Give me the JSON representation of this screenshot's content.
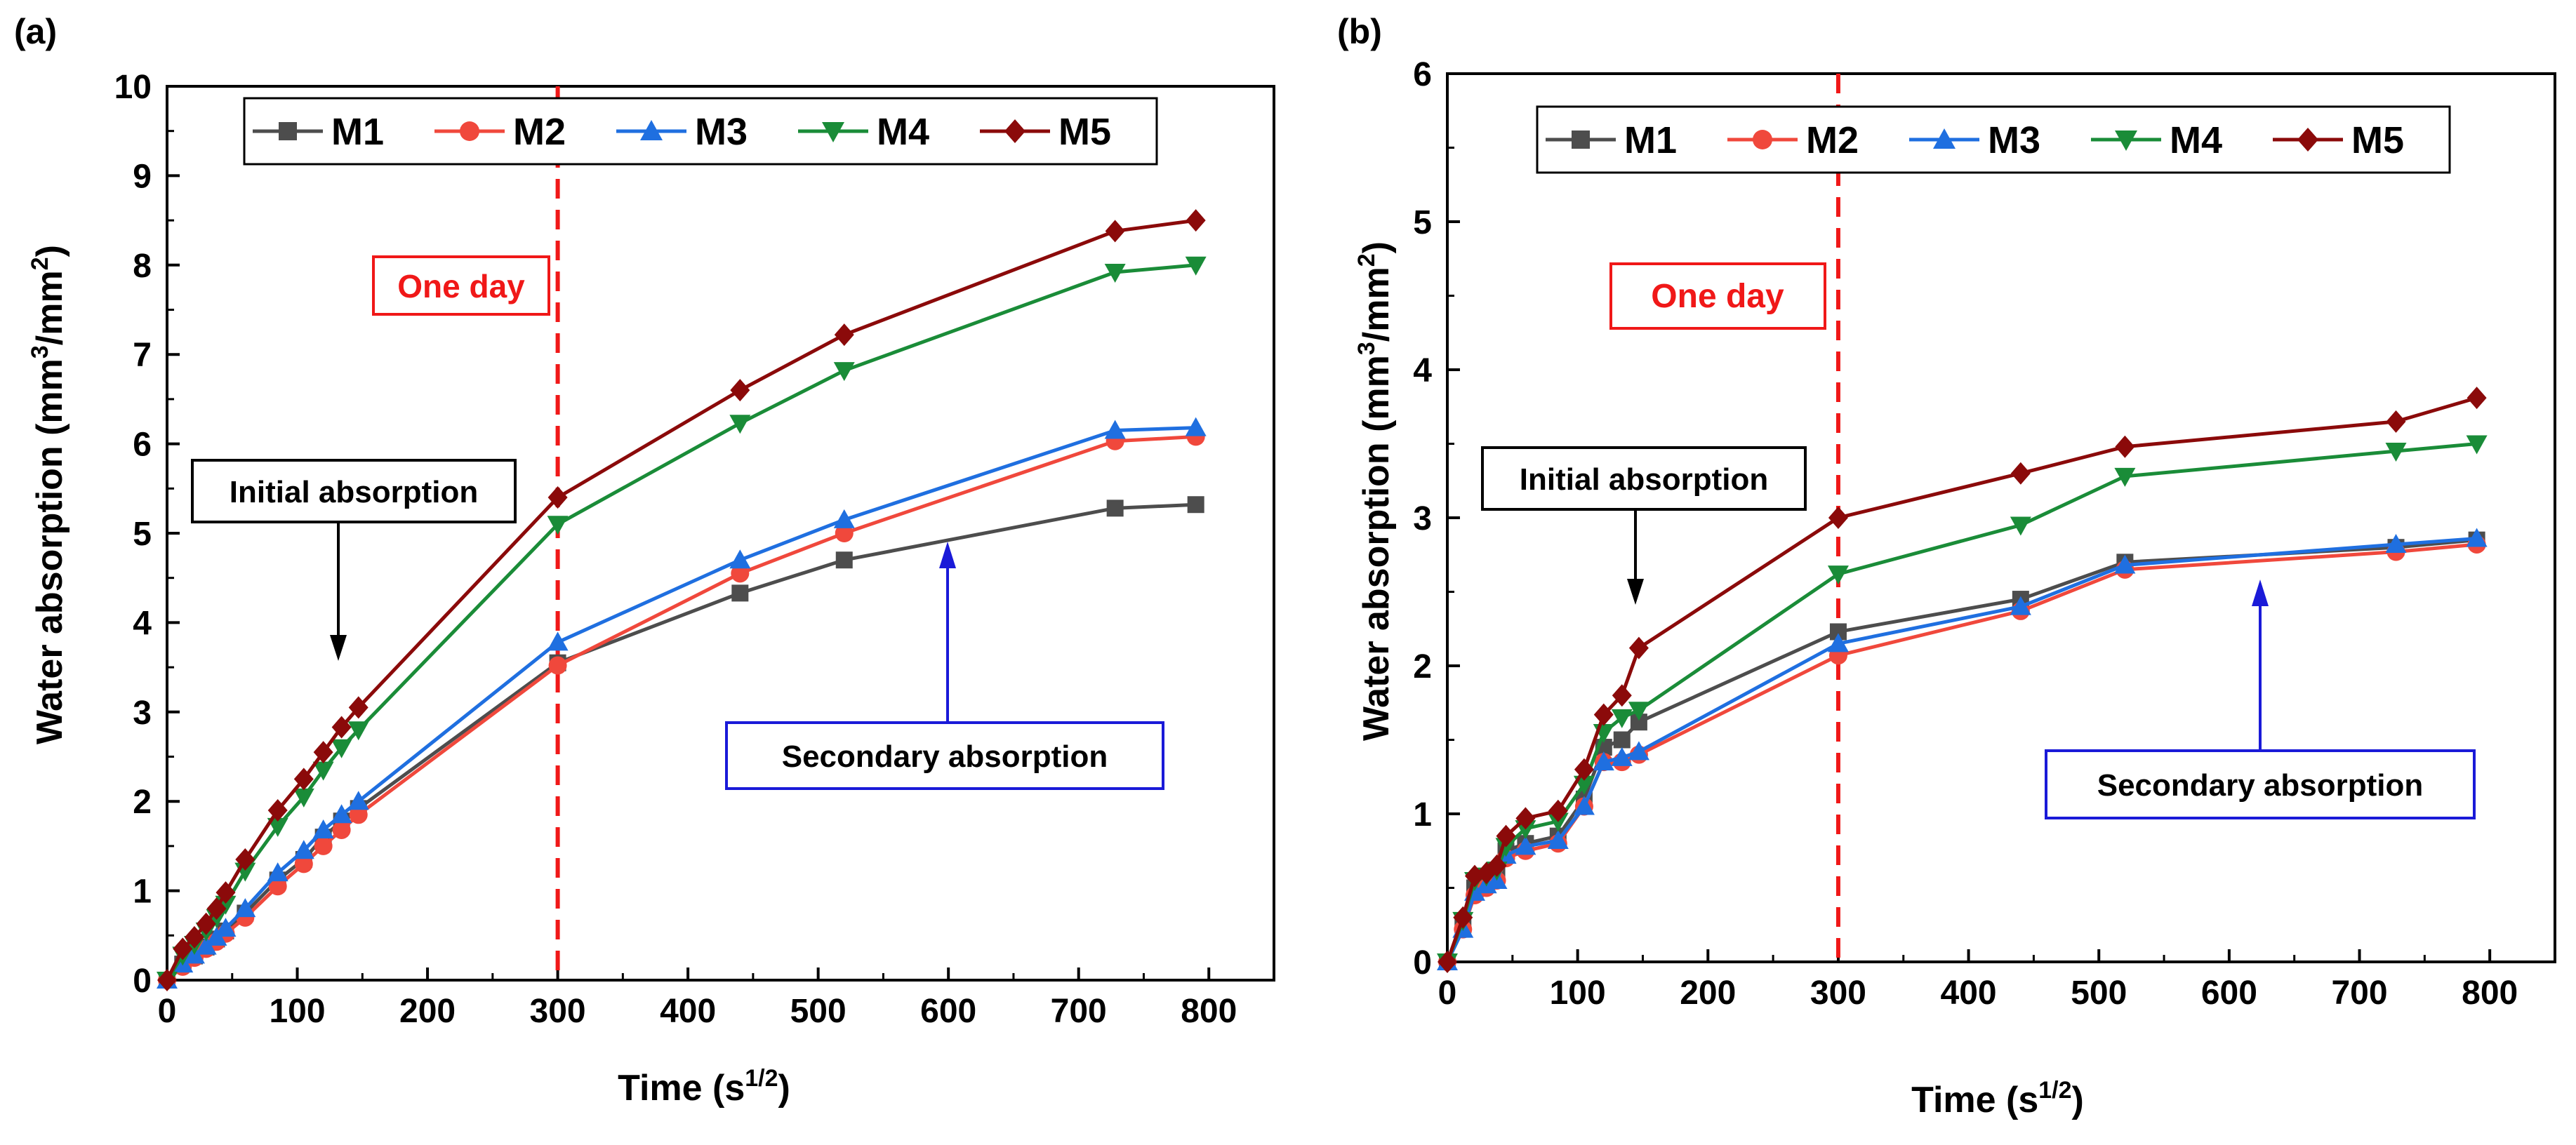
{
  "panels": [
    {
      "label": "(a)",
      "chart_data": {
        "type": "line",
        "xlabel": "Time (s",
        "xlabel_sup": "1/2",
        "xlabel_end": ")",
        "ylabel": "Water absorption (mm",
        "ylabel_sup1": "3",
        "ylabel_mid": "/mm",
        "ylabel_sup2": "2",
        "ylabel_end": ")",
        "xlim": [
          0,
          850
        ],
        "ylim": [
          0,
          10
        ],
        "xticks": [
          0,
          100,
          200,
          300,
          400,
          500,
          600,
          700,
          800
        ],
        "yticks": [
          0,
          1,
          2,
          3,
          4,
          5,
          6,
          7,
          8,
          9,
          10
        ],
        "x": [
          0,
          12,
          21,
          30,
          38,
          45,
          60,
          85,
          105,
          120,
          134,
          147,
          300,
          440,
          520,
          728,
          790
        ],
        "series": [
          {
            "name": "M1",
            "color": "#4d4d4d",
            "marker": "square",
            "values": [
              0,
              0.18,
              0.27,
              0.37,
              0.46,
              0.55,
              0.75,
              1.12,
              1.35,
              1.6,
              1.78,
              1.92,
              3.55,
              4.33,
              4.7,
              5.28,
              5.32
            ]
          },
          {
            "name": "M2",
            "color": "#f0483c",
            "marker": "circle",
            "values": [
              0,
              0.15,
              0.25,
              0.35,
              0.43,
              0.52,
              0.7,
              1.05,
              1.3,
              1.5,
              1.68,
              1.85,
              3.52,
              4.55,
              5.0,
              6.03,
              6.08
            ]
          },
          {
            "name": "M3",
            "color": "#1f6fe0",
            "marker": "triangle-up",
            "values": [
              0,
              0.18,
              0.28,
              0.38,
              0.48,
              0.58,
              0.8,
              1.2,
              1.45,
              1.68,
              1.85,
              2.0,
              3.78,
              4.7,
              5.15,
              6.15,
              6.18
            ]
          },
          {
            "name": "M4",
            "color": "#1a8c38",
            "marker": "triangle-down",
            "values": [
              0,
              0.28,
              0.4,
              0.55,
              0.7,
              0.85,
              1.22,
              1.72,
              2.05,
              2.35,
              2.6,
              2.8,
              5.1,
              6.23,
              6.82,
              7.92,
              8.0
            ]
          },
          {
            "name": "M5",
            "color": "#8b0a0a",
            "marker": "diamond",
            "values": [
              0,
              0.35,
              0.48,
              0.63,
              0.8,
              0.98,
              1.35,
              1.9,
              2.25,
              2.55,
              2.83,
              3.05,
              5.4,
              6.6,
              7.22,
              8.38,
              8.5
            ]
          }
        ],
        "vline": {
          "x": 300,
          "label": "One day"
        },
        "annotations": {
          "initial": "Initial absorption",
          "secondary": "Secondary absorption"
        }
      }
    },
    {
      "label": "(b)",
      "chart_data": {
        "type": "line",
        "xlabel": "Time (s",
        "xlabel_sup": "1/2",
        "xlabel_end": ")",
        "ylabel": "Water absorption (mm",
        "ylabel_sup1": "3",
        "ylabel_mid": "/mm",
        "ylabel_sup2": "2",
        "ylabel_end": ")",
        "xlim": [
          0,
          850
        ],
        "ylim": [
          0,
          6
        ],
        "xticks": [
          0,
          100,
          200,
          300,
          400,
          500,
          600,
          700,
          800
        ],
        "yticks": [
          0,
          1,
          2,
          3,
          4,
          5,
          6
        ],
        "x": [
          0,
          12,
          21,
          30,
          38,
          45,
          60,
          85,
          105,
          120,
          134,
          147,
          300,
          440,
          520,
          728,
          790
        ],
        "series": [
          {
            "name": "M1",
            "color": "#4d4d4d",
            "marker": "square",
            "values": [
              0,
              0.25,
              0.5,
              0.55,
              0.6,
              0.75,
              0.8,
              0.85,
              1.1,
              1.45,
              1.5,
              1.62,
              2.23,
              2.45,
              2.7,
              2.8,
              2.85
            ]
          },
          {
            "name": "M2",
            "color": "#f0483c",
            "marker": "circle",
            "values": [
              0,
              0.22,
              0.45,
              0.5,
              0.55,
              0.7,
              0.75,
              0.8,
              1.05,
              1.35,
              1.35,
              1.4,
              2.07,
              2.37,
              2.65,
              2.77,
              2.82
            ]
          },
          {
            "name": "M3",
            "color": "#1f6fe0",
            "marker": "triangle-up",
            "values": [
              0,
              0.22,
              0.47,
              0.52,
              0.55,
              0.72,
              0.78,
              0.82,
              1.05,
              1.35,
              1.38,
              1.42,
              2.15,
              2.4,
              2.68,
              2.82,
              2.86
            ]
          },
          {
            "name": "M4",
            "color": "#1a8c38",
            "marker": "triangle-down",
            "values": [
              0,
              0.28,
              0.55,
              0.58,
              0.62,
              0.78,
              0.9,
              0.95,
              1.2,
              1.55,
              1.65,
              1.7,
              2.62,
              2.95,
              3.28,
              3.45,
              3.5
            ]
          },
          {
            "name": "M5",
            "color": "#8b0a0a",
            "marker": "diamond",
            "values": [
              0,
              0.3,
              0.58,
              0.6,
              0.65,
              0.85,
              0.97,
              1.02,
              1.3,
              1.67,
              1.8,
              2.12,
              3.0,
              3.3,
              3.48,
              3.65,
              3.81
            ]
          }
        ],
        "vline": {
          "x": 300,
          "label": "One day"
        },
        "annotations": {
          "initial": "Initial absorption",
          "secondary": "Secondary absorption"
        }
      }
    }
  ]
}
